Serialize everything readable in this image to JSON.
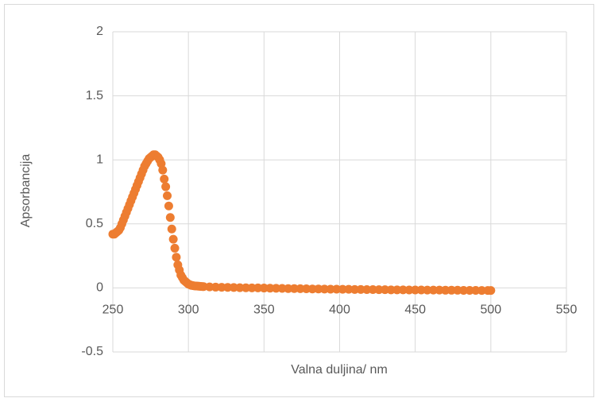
{
  "chart_data": {
    "type": "scatter",
    "x_label": "Valna duljina/ nm",
    "y_label": "Apsorbancija",
    "color": "#ED7D31",
    "grid": true,
    "xlim": [
      250,
      550
    ],
    "xticks": [
      250,
      300,
      350,
      400,
      450,
      500,
      550
    ],
    "ylim": [
      -0.5,
      2
    ],
    "yticks": [
      -0.5,
      0,
      0.5,
      1,
      1.5,
      2
    ],
    "x": [
      250,
      251,
      252,
      253,
      254,
      255,
      256,
      257,
      258,
      259,
      260,
      261,
      262,
      263,
      264,
      265,
      266,
      267,
      268,
      269,
      270,
      271,
      272,
      273,
      274,
      275,
      276,
      277,
      278,
      279,
      280,
      281,
      282,
      283,
      284,
      285,
      286,
      287,
      288,
      289,
      290,
      291,
      292,
      293,
      294,
      295,
      296,
      297,
      298,
      299,
      300,
      301,
      302,
      303,
      304,
      305,
      306,
      307,
      308,
      309,
      310,
      314,
      318,
      322,
      326,
      330,
      334,
      338,
      342,
      346,
      350,
      354,
      358,
      362,
      366,
      370,
      374,
      378,
      382,
      386,
      390,
      394,
      398,
      402,
      406,
      410,
      414,
      418,
      422,
      426,
      430,
      434,
      438,
      442,
      446,
      450,
      454,
      458,
      462,
      466,
      470,
      474,
      478,
      482,
      486,
      490,
      494,
      498,
      500
    ],
    "values": [
      0.42,
      0.42,
      0.43,
      0.44,
      0.45,
      0.47,
      0.5,
      0.53,
      0.56,
      0.59,
      0.62,
      0.65,
      0.68,
      0.71,
      0.74,
      0.77,
      0.8,
      0.83,
      0.86,
      0.89,
      0.92,
      0.95,
      0.97,
      0.99,
      1.01,
      1.02,
      1.03,
      1.04,
      1.04,
      1.03,
      1.02,
      1.0,
      0.97,
      0.92,
      0.85,
      0.79,
      0.72,
      0.64,
      0.55,
      0.46,
      0.38,
      0.31,
      0.24,
      0.18,
      0.14,
      0.1,
      0.08,
      0.06,
      0.05,
      0.04,
      0.03,
      0.025,
      0.02,
      0.018,
      0.016,
      0.015,
      0.014,
      0.013,
      0.012,
      0.011,
      0.01,
      0.008,
      0.006,
      0.005,
      0.004,
      0.003,
      0.002,
      0.001,
      0,
      0,
      -0.001,
      -0.002,
      -0.003,
      -0.004,
      -0.005,
      -0.005,
      -0.006,
      -0.007,
      -0.008,
      -0.008,
      -0.009,
      -0.01,
      -0.01,
      -0.011,
      -0.011,
      -0.012,
      -0.012,
      -0.013,
      -0.013,
      -0.014,
      -0.014,
      -0.015,
      -0.015,
      -0.015,
      -0.016,
      -0.016,
      -0.016,
      -0.017,
      -0.017,
      -0.017,
      -0.018,
      -0.018,
      -0.018,
      -0.019,
      -0.019,
      -0.019,
      -0.02,
      -0.02,
      -0.02
    ]
  }
}
